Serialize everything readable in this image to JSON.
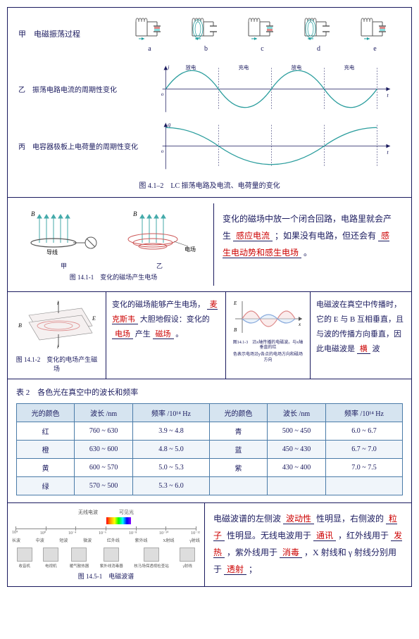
{
  "sec1": {
    "row_a_label": "甲　电磁振荡过程",
    "circuit_labels": [
      "a",
      "b",
      "c",
      "d",
      "e"
    ],
    "row_b_label": "乙　振荡电路电流的周期性变化",
    "row_c_label": "丙　电容器极板上电荷量的周期性变化",
    "caption": "图 4.1–2　LC 振荡电路及电流、电荷量的变化",
    "wave_i": {
      "phase_labels": [
        "放电",
        "充电",
        "放电",
        "充电"
      ],
      "y_label": "i",
      "x_label": "t",
      "curve_color": "#2a9d9d",
      "type": "sine",
      "amplitude": 28,
      "periods": 2
    },
    "wave_q": {
      "y_label": "q",
      "x_label": "t",
      "curve_color": "#2a9d9d",
      "type": "cosine",
      "amplitude": 28,
      "periods": 2
    },
    "circuit_style": {
      "coil_color": "#888",
      "cap_fill_colors": [
        "#d88",
        "#8dd"
      ],
      "arrow_color": "#1a9d9d"
    }
  },
  "sec2": {
    "left": {
      "caption": "图 14.1-1　变化的磁场产生电场",
      "sub_a": "甲",
      "sub_b": "乙",
      "label_B": "B",
      "label_wire": "导线",
      "label_field": "电场",
      "field_color": "#4aa",
      "b_arrow_color": "#4aa"
    },
    "right": {
      "text_1": "变化的磁场中放一个闭合回路，电路里就会产生",
      "blank_1": "感应电流",
      "text_2": "；如果没有电路，但还会有",
      "blank_2": "感生电动势和感生电场",
      "text_3": "。"
    }
  },
  "sec3": {
    "a": {
      "caption": "图 14.1-2　变化的电场产生磁场",
      "label_B": "B",
      "label_E": "E",
      "label_i": "i",
      "field_color": "#d88"
    },
    "b": {
      "text_1": "变化的磁场能够产生电场，",
      "blank_1": "麦克斯韦",
      "text_2": "大胆地假设：变化的",
      "blank_2": "电场",
      "text_3": "产生",
      "blank_3": "磁场",
      "text_4": "。"
    },
    "c": {
      "caption_a": "图14.1-3　沿x轴传播的电磁波。与x轴垂直的红",
      "caption_b": "色表示电场沿y各点的电场方向和磁场方向",
      "e_color": "#d88",
      "b_color": "#8ad"
    },
    "d": {
      "text_1": "电磁波在真空中传播时，它的 E 与 B 互相垂直，且与波的传播方向垂直，因此电磁波是",
      "blank_1": "横",
      "text_2": "波"
    }
  },
  "table": {
    "title": "表 2　各色光在真空中的波长和频率",
    "headers": [
      "光的颜色",
      "波长 /nm",
      "频率 /10¹⁴ Hz",
      "光的颜色",
      "波长 /nm",
      "频率 /10¹⁴ Hz"
    ],
    "rows": [
      [
        "红",
        "760 ~ 630",
        "3.9 ~ 4.8",
        "青",
        "500 ~ 450",
        "6.0 ~ 6.7"
      ],
      [
        "橙",
        "630 ~ 600",
        "4.8 ~ 5.0",
        "蓝",
        "450 ~ 430",
        "6.7 ~ 7.0"
      ],
      [
        "黄",
        "600 ~ 570",
        "5.0 ~ 5.3",
        "紫",
        "430 ~ 400",
        "7.0 ~ 7.5"
      ],
      [
        "绿",
        "570 ~ 500",
        "5.3 ~ 6.0",
        "",
        "",
        ""
      ]
    ],
    "header_bg": "#d6e4f0",
    "border_color": "#4a7ba8",
    "row_alt_bg": "#f0f5fa"
  },
  "sec5": {
    "left": {
      "caption": "图 14.5-1　电磁波谱",
      "top_labels": [
        "无线电波",
        "",
        "可见光",
        "",
        ""
      ],
      "scale_labels": [
        "10⁴",
        "10⁰",
        "10⁻⁴",
        "10⁻⁶",
        "10⁻⁸",
        "10⁻¹⁰",
        "10⁻¹²"
      ],
      "band_labels": [
        "长波",
        "中波",
        "短波",
        "微波",
        "红外线",
        "紫外线",
        "X射线",
        "γ射线"
      ],
      "icons": [
        "收音机",
        "电视机",
        "暖气散热器",
        "紫外线消毒器",
        "核马场保透视检查站",
        "γ射线"
      ]
    },
    "right": {
      "text_1": "电磁波谱的左侧波",
      "blank_1": "波动性",
      "text_2": "性明显，右侧波的",
      "blank_2": "粒子",
      "text_3": "性明显。无线电波用于",
      "blank_3": "通讯",
      "text_4": "，红外线用于",
      "blank_4": "发热",
      "text_5": "，紫外线用于",
      "blank_5": "消毒",
      "text_6": "，X 射线和 γ 射线分别用于",
      "blank_6": "透射",
      "text_7": "；"
    }
  }
}
